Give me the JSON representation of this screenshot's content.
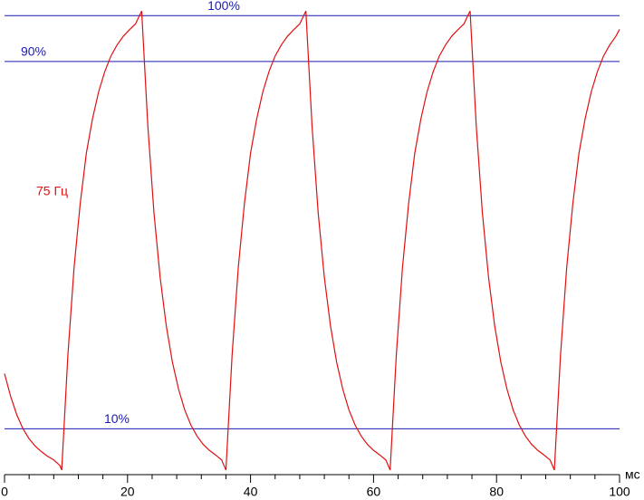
{
  "chart_data": {
    "type": "line",
    "xlabel": "мс",
    "xlim": [
      0,
      100
    ],
    "ylim": [
      0,
      103.4
    ],
    "xticks": [
      0,
      20,
      40,
      60,
      80,
      100
    ],
    "xminorticks": [
      4,
      8,
      12,
      16,
      24,
      28,
      32,
      36,
      44,
      48,
      52,
      56,
      64,
      68,
      72,
      76,
      84,
      88,
      92,
      96
    ],
    "hlines": [
      {
        "value": 100,
        "label": "100%"
      },
      {
        "value": 90,
        "label": "90%"
      },
      {
        "value": 10,
        "label": "10%"
      }
    ],
    "hline_color": "#1a1ab4",
    "x": [
      0,
      1,
      2,
      3,
      4,
      5,
      6,
      7,
      8,
      9,
      9.3,
      10.3,
      11.3,
      12.3,
      13.3,
      14.3,
      15.3,
      16.3,
      17.3,
      18.3,
      19.3,
      20.3,
      21.3,
      22.3,
      23.3,
      24.3,
      25.3,
      26.3,
      27.3,
      28.3,
      29.3,
      30.3,
      31.3,
      32.3,
      33.3,
      34.3,
      35.3,
      36,
      37,
      38,
      39,
      40,
      41,
      42,
      43,
      44,
      45,
      46,
      47,
      48,
      49,
      50,
      51,
      52,
      53,
      54,
      55,
      56,
      57,
      58,
      59,
      60,
      61,
      62,
      62.7,
      63.7,
      64.7,
      65.7,
      66.7,
      67.7,
      68.7,
      69.7,
      70.7,
      71.7,
      72.7,
      73.7,
      74.7,
      75.7,
      76.7,
      77.7,
      78.7,
      79.7,
      80.7,
      81.7,
      82.7,
      83.7,
      84.7,
      85.7,
      86.7,
      87.7,
      88.7,
      89.4,
      90.4,
      91.4,
      92.4,
      93.4,
      94.4,
      95.4,
      96.4,
      97.4,
      98.4,
      99.4,
      100
    ],
    "series": [
      {
        "name": "75 Гц",
        "color": "#e01010",
        "values": [
          22,
          17,
          13,
          10,
          7.8,
          6.2,
          5,
          4,
          3.2,
          2,
          1,
          26,
          45,
          59,
          70,
          77.5,
          83.4,
          87.8,
          91.2,
          93.6,
          95.5,
          96.9,
          98.2,
          101,
          76,
          57,
          43,
          32.4,
          24.5,
          18.6,
          14.1,
          10.8,
          8.4,
          6.6,
          5.3,
          4.3,
          3.2,
          1,
          26,
          45,
          59,
          70,
          77.5,
          83.4,
          87.8,
          91.2,
          93.6,
          95.5,
          96.9,
          98.2,
          101,
          76,
          57,
          43,
          32.4,
          24.5,
          18.6,
          14.1,
          10.8,
          8.4,
          6.6,
          5.3,
          4.3,
          3.2,
          1,
          26,
          45,
          59,
          70,
          77.5,
          83.4,
          87.8,
          91.2,
          93.6,
          95.5,
          96.9,
          98.2,
          101,
          76,
          57,
          43,
          32.4,
          24.5,
          18.6,
          14.1,
          10.8,
          8.4,
          6.6,
          5.3,
          4.3,
          3.2,
          1,
          26,
          45,
          59,
          70,
          77.5,
          83.4,
          87.8,
          91.2,
          93.6,
          95.5,
          97
        ]
      }
    ]
  }
}
